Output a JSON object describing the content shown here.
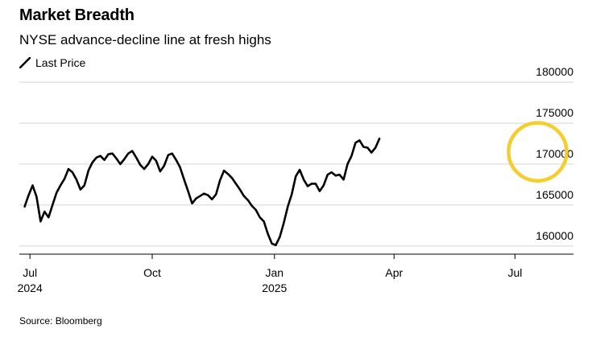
{
  "chart_data": {
    "type": "line",
    "title": "Market Breadth",
    "subtitle": "NYSE advance-decline line at fresh highs",
    "source": "Source: Bloomberg",
    "series": [
      {
        "name": "Last Price",
        "color": "#000000",
        "x_start": "2024-06-27",
        "x_step_days": 3,
        "values": [
          164800,
          166200,
          167400,
          166000,
          163000,
          164200,
          163500,
          165000,
          166500,
          167400,
          168200,
          169400,
          169000,
          168100,
          166900,
          167400,
          169200,
          170200,
          170800,
          171000,
          170500,
          171200,
          171300,
          170700,
          170000,
          170600,
          171300,
          171600,
          170800,
          169900,
          169400,
          170000,
          170900,
          170400,
          169100,
          169800,
          171100,
          171300,
          170500,
          169600,
          168100,
          166700,
          165200,
          165800,
          166100,
          166400,
          166200,
          165700,
          166300,
          168000,
          169200,
          168800,
          168300,
          167600,
          166900,
          166100,
          165600,
          164900,
          164400,
          163500,
          163000,
          161500,
          160300,
          160100,
          161100,
          162800,
          164800,
          166300,
          168500,
          169300,
          168100,
          167300,
          167600,
          167600,
          166700,
          167400,
          168700,
          169000,
          168600,
          168700,
          168100,
          170000,
          171000,
          172600,
          172900,
          172100,
          172000,
          171400,
          172000,
          173100
        ]
      }
    ],
    "x_ticks": [
      {
        "month": "Jul",
        "year": "2024",
        "date": "2024-07-01"
      },
      {
        "month": "Oct",
        "year": "",
        "date": "2024-10-01"
      },
      {
        "month": "Jan",
        "year": "2025",
        "date": "2025-01-01"
      },
      {
        "month": "Apr",
        "year": "",
        "date": "2025-04-01"
      },
      {
        "month": "Jul",
        "year": "",
        "date": "2025-07-01"
      }
    ],
    "y_ticks": [
      160000,
      165000,
      170000,
      175000,
      180000
    ],
    "y_tick_labels": [
      "160000",
      "165000",
      "170000",
      "175000",
      "180000"
    ],
    "ylim": [
      159000,
      181000
    ],
    "xlim": [
      "2024-06-23",
      "2025-08-14"
    ],
    "grid": "horizontal",
    "y_axis_position": "right",
    "highlight": {
      "description": "yellow circle around latest highs",
      "color": "#f5cd2e",
      "center_x": "2025-07-18",
      "center_y": 171500
    }
  }
}
